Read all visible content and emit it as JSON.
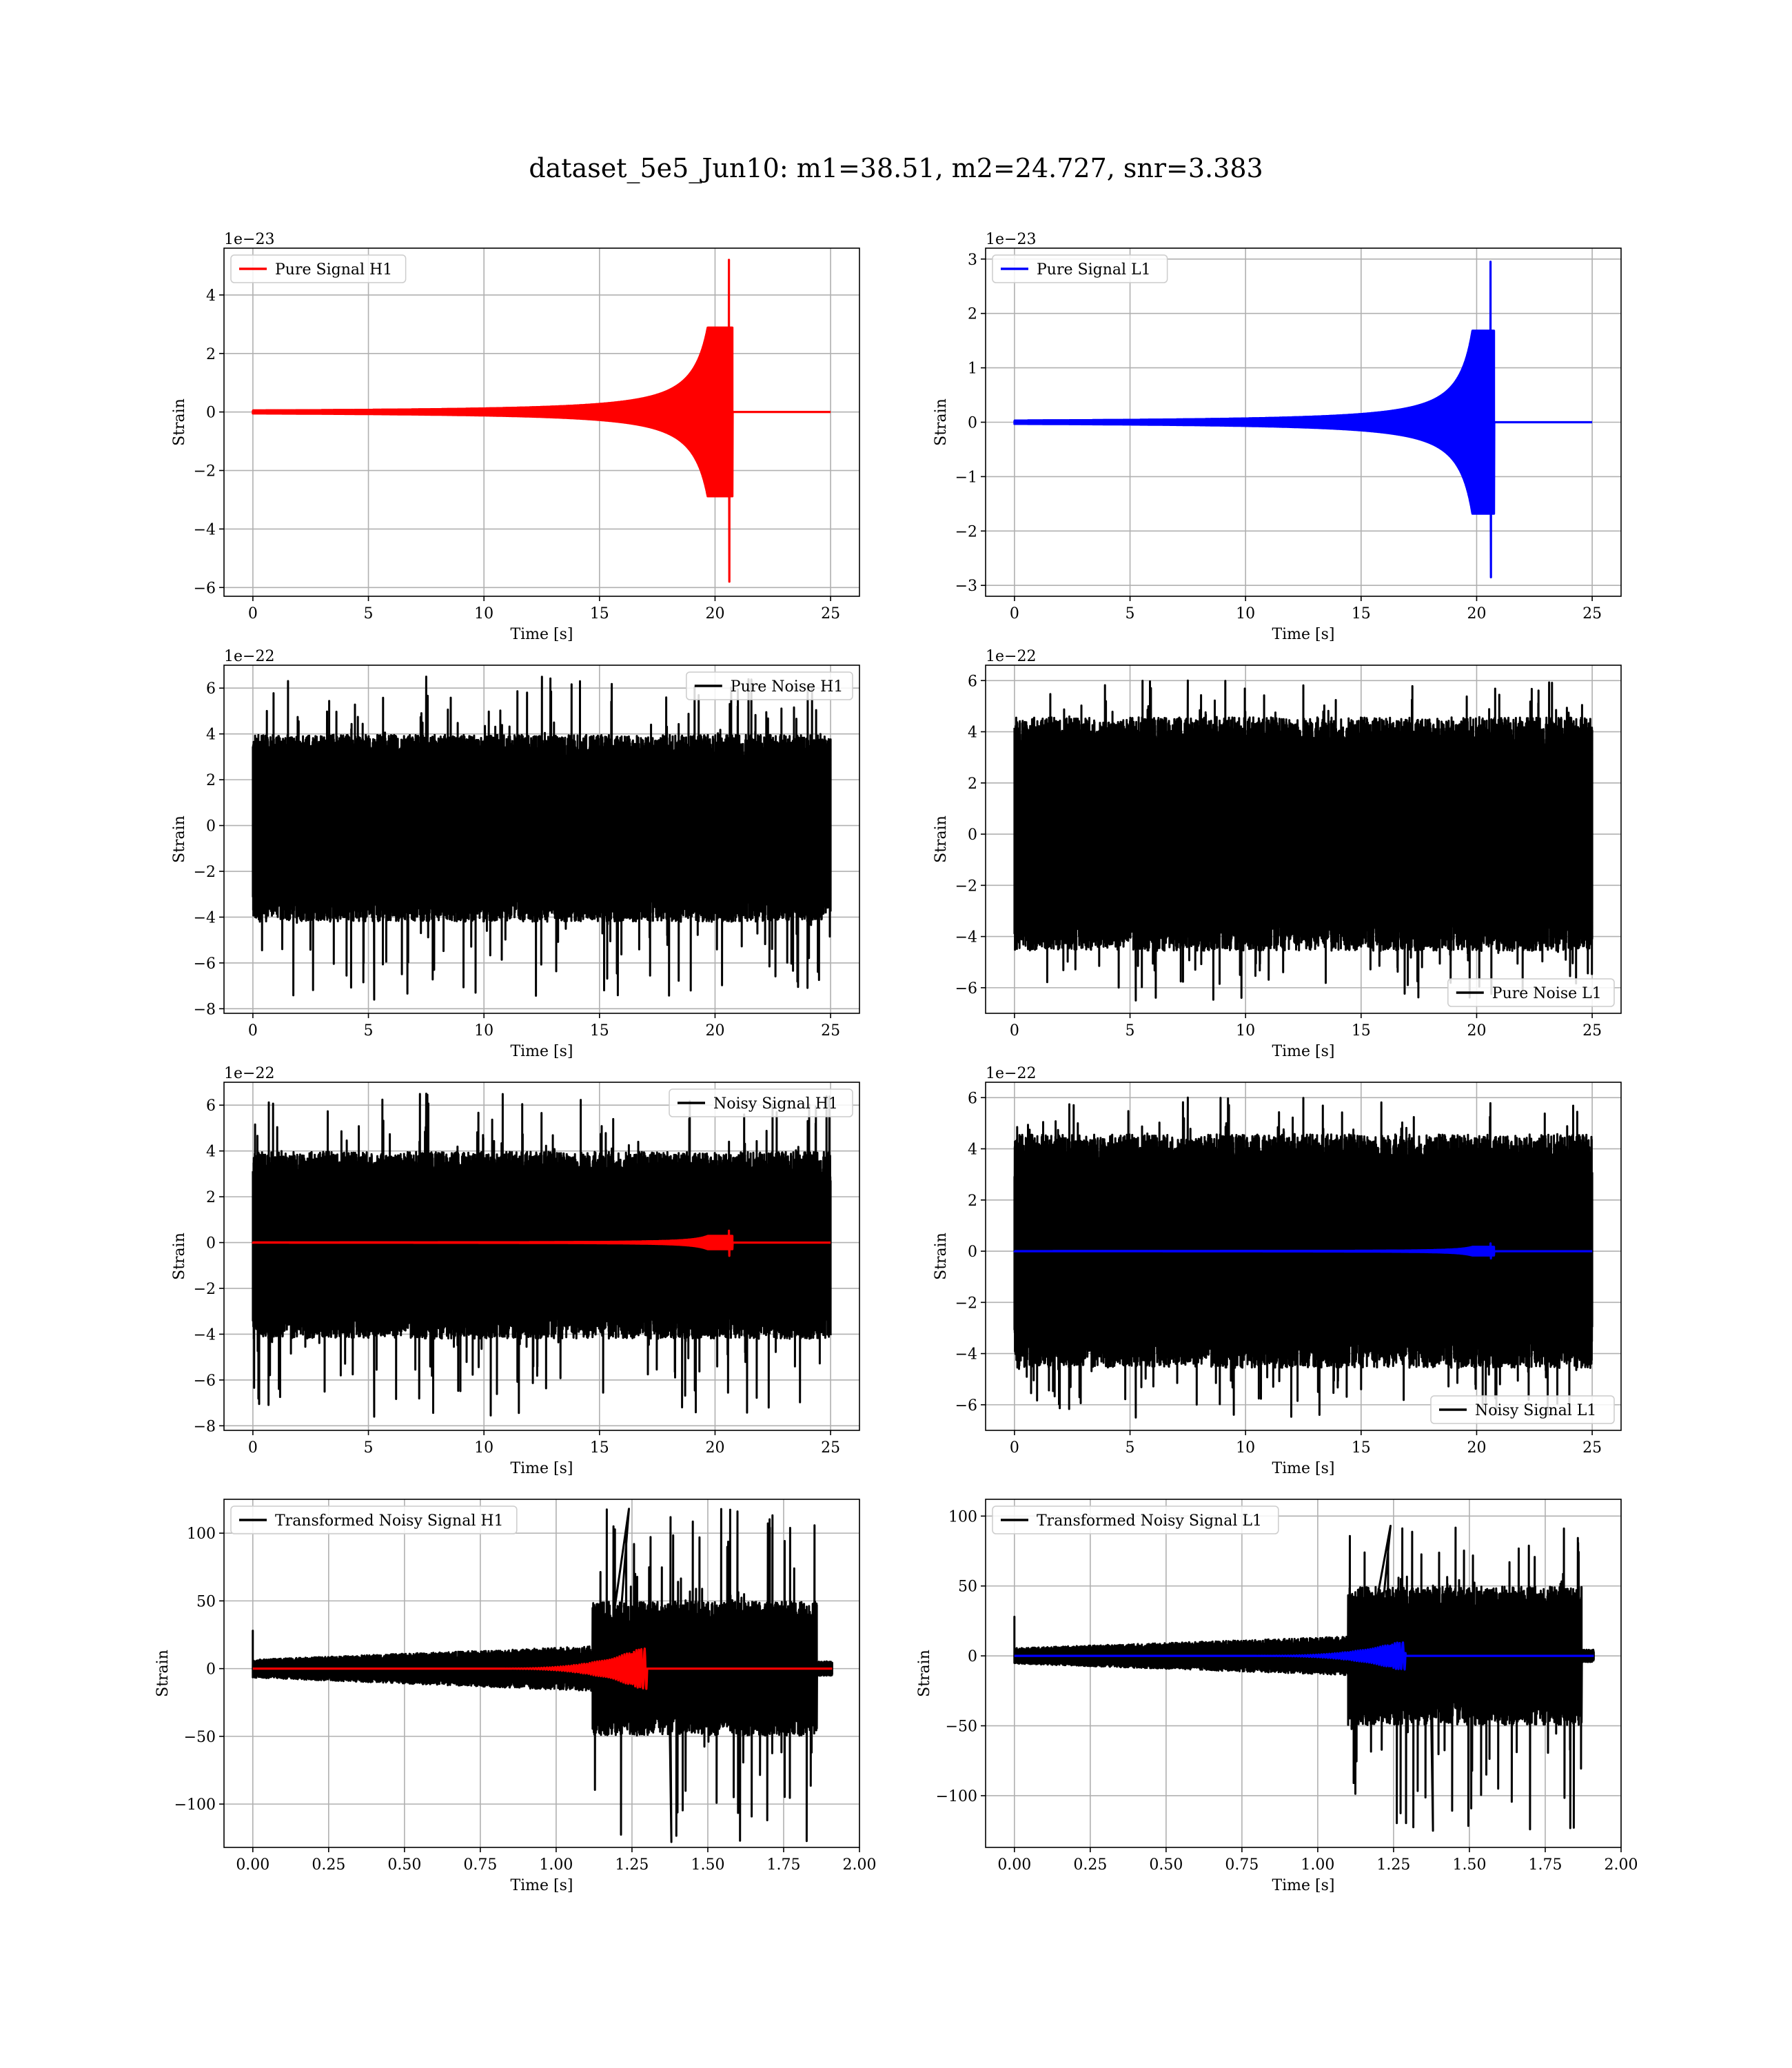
{
  "figure": {
    "title": "dataset_5e5_Jun10: m1=38.51, m2=24.727, snr=3.383"
  },
  "chart_data": [
    {
      "type": "line",
      "panel": "top-left",
      "title": "",
      "xlabel": "Time [s]",
      "ylabel": "Strain",
      "offset_text": "1e−23",
      "xlim": [
        -1.25,
        26.25
      ],
      "ylim": [
        -6.3,
        5.6
      ],
      "xticks": [
        0,
        5,
        10,
        15,
        20,
        25
      ],
      "yticks": [
        -6,
        -4,
        -2,
        0,
        2,
        4
      ],
      "ytick_labels": [
        "−6",
        "−4",
        "−2",
        "0",
        "2",
        "4"
      ],
      "grid": true,
      "legend_loc": "top-left",
      "series": [
        {
          "name": "Pure Signal H1",
          "color": "#ff0000",
          "kind": "chirp",
          "x_range": [
            0,
            25
          ],
          "merger_time": 20.6,
          "peak_high": 5.2,
          "peak_low": -5.8,
          "early_amp": 0.05,
          "amp_at_19": 1.4,
          "amp_at_20_4": 2.4
        }
      ]
    },
    {
      "type": "line",
      "panel": "top-right",
      "title": "",
      "xlabel": "Time [s]",
      "ylabel": "Strain",
      "offset_text": "1e−23",
      "xlim": [
        -1.25,
        26.25
      ],
      "ylim": [
        -3.2,
        3.2
      ],
      "xticks": [
        0,
        5,
        10,
        15,
        20,
        25
      ],
      "yticks": [
        -3,
        -2,
        -1,
        0,
        1,
        2,
        3
      ],
      "ytick_labels": [
        "−3",
        "−2",
        "−1",
        "0",
        "1",
        "2",
        "3"
      ],
      "grid": true,
      "legend_loc": "top-left",
      "series": [
        {
          "name": "Pure Signal L1",
          "color": "#0000ff",
          "kind": "chirp",
          "x_range": [
            0,
            25
          ],
          "merger_time": 20.6,
          "peak_high": 2.95,
          "peak_low": -2.85,
          "early_amp": 0.03,
          "amp_at_19": 0.7,
          "amp_at_20_4": 1.4
        }
      ]
    },
    {
      "type": "line",
      "panel": "second-row-left",
      "title": "",
      "xlabel": "Time [s]",
      "ylabel": "Strain",
      "offset_text": "1e−22",
      "xlim": [
        -1.25,
        26.25
      ],
      "ylim": [
        -8.2,
        7.0
      ],
      "xticks": [
        0,
        5,
        10,
        15,
        20,
        25
      ],
      "yticks": [
        -8,
        -6,
        -4,
        -2,
        0,
        2,
        4,
        6
      ],
      "ytick_labels": [
        "−8",
        "−6",
        "−4",
        "−2",
        "0",
        "2",
        "4",
        "6"
      ],
      "grid": true,
      "legend_loc": "top-right",
      "series": [
        {
          "name": "Pure Noise H1",
          "color": "#000000",
          "kind": "noise",
          "x_range": [
            0,
            25
          ],
          "band_high": 3.3,
          "band_low": -3.5,
          "peak_high": 6.5,
          "peak_low": -7.6
        }
      ]
    },
    {
      "type": "line",
      "panel": "second-row-right",
      "title": "",
      "xlabel": "Time [s]",
      "ylabel": "Strain",
      "offset_text": "1e−22",
      "xlim": [
        -1.25,
        26.25
      ],
      "ylim": [
        -7.0,
        6.6
      ],
      "xticks": [
        0,
        5,
        10,
        15,
        20,
        25
      ],
      "yticks": [
        -6,
        -4,
        -2,
        0,
        2,
        4,
        6
      ],
      "ytick_labels": [
        "−6",
        "−4",
        "−2",
        "0",
        "2",
        "4",
        "6"
      ],
      "grid": true,
      "legend_loc": "bottom-right",
      "series": [
        {
          "name": "Pure Noise L1",
          "color": "#000000",
          "kind": "noise",
          "x_range": [
            0,
            25
          ],
          "band_high": 3.8,
          "band_low": -3.8,
          "peak_high": 6.0,
          "peak_low": -6.5
        }
      ]
    },
    {
      "type": "line",
      "panel": "third-row-left",
      "title": "",
      "xlabel": "Time [s]",
      "ylabel": "Strain",
      "offset_text": "1e−22",
      "xlim": [
        -1.25,
        26.25
      ],
      "ylim": [
        -8.2,
        7.0
      ],
      "xticks": [
        0,
        5,
        10,
        15,
        20,
        25
      ],
      "yticks": [
        -8,
        -6,
        -4,
        -2,
        0,
        2,
        4,
        6
      ],
      "ytick_labels": [
        "−8",
        "−6",
        "−4",
        "−2",
        "0",
        "2",
        "4",
        "6"
      ],
      "grid": true,
      "legend_loc": "top-right",
      "series": [
        {
          "name": "Noisy Signal H1",
          "color": "#000000",
          "kind": "noise",
          "x_range": [
            0,
            25
          ],
          "band_high": 3.3,
          "band_low": -3.5,
          "peak_high": 6.5,
          "peak_low": -7.6
        },
        {
          "color": "#ff0000",
          "kind": "chirp",
          "x_range": [
            0,
            25
          ],
          "merger_time": 20.6,
          "peak_high": 0.52,
          "peak_low": -0.58,
          "early_amp": 0.005,
          "amp_at_19": 0.14,
          "amp_at_20_4": 0.24
        }
      ]
    },
    {
      "type": "line",
      "panel": "third-row-right",
      "title": "",
      "xlabel": "Time [s]",
      "ylabel": "Strain",
      "offset_text": "1e−22",
      "xlim": [
        -1.25,
        26.25
      ],
      "ylim": [
        -7.0,
        6.6
      ],
      "xticks": [
        0,
        5,
        10,
        15,
        20,
        25
      ],
      "yticks": [
        -6,
        -4,
        -2,
        0,
        2,
        4,
        6
      ],
      "ytick_labels": [
        "−6",
        "−4",
        "−2",
        "0",
        "2",
        "4",
        "6"
      ],
      "grid": true,
      "legend_loc": "bottom-right",
      "series": [
        {
          "name": "Noisy Signal L1",
          "color": "#000000",
          "kind": "noise",
          "x_range": [
            0,
            25
          ],
          "band_high": 3.8,
          "band_low": -3.8,
          "peak_high": 6.0,
          "peak_low": -6.5
        },
        {
          "color": "#0000ff",
          "kind": "chirp",
          "x_range": [
            0,
            25
          ],
          "merger_time": 20.6,
          "peak_high": 0.3,
          "peak_low": -0.28,
          "early_amp": 0.003,
          "amp_at_19": 0.07,
          "amp_at_20_4": 0.14
        }
      ]
    },
    {
      "type": "line",
      "panel": "bottom-left",
      "title": "",
      "xlabel": "Time [s]",
      "ylabel": "Strain",
      "offset_text": "",
      "xlim": [
        -0.095,
        2.0
      ],
      "ylim": [
        -132,
        125
      ],
      "xticks": [
        0.0,
        0.25,
        0.5,
        0.75,
        1.0,
        1.25,
        1.5,
        1.75,
        2.0
      ],
      "xtick_labels": [
        "0.00",
        "0.25",
        "0.50",
        "0.75",
        "1.00",
        "1.25",
        "1.50",
        "1.75",
        "2.00"
      ],
      "yticks": [
        -100,
        -50,
        0,
        50,
        100
      ],
      "ytick_labels": [
        "−100",
        "−50",
        "0",
        "50",
        "100"
      ],
      "grid": true,
      "legend_loc": "top-left",
      "series": [
        {
          "name": "Transformed Noisy Signal H1",
          "color": "#000000",
          "kind": "transformed",
          "x_range": [
            0,
            1.91
          ],
          "burst_start": 1.12,
          "burst_end": 1.86,
          "quiet_amp": 6,
          "burst_amp": 45,
          "peak_high": 118,
          "peak_low": -128
        },
        {
          "color": "#ff0000",
          "kind": "tchirp",
          "x_range": [
            0,
            1.91
          ],
          "merger_time": 1.28,
          "peak_amp": 15
        }
      ]
    },
    {
      "type": "line",
      "panel": "bottom-right",
      "title": "",
      "xlabel": "Time [s]",
      "ylabel": "Strain",
      "offset_text": "",
      "xlim": [
        -0.095,
        2.0
      ],
      "ylim": [
        -137,
        112
      ],
      "xticks": [
        0.0,
        0.25,
        0.5,
        0.75,
        1.0,
        1.25,
        1.5,
        1.75,
        2.0
      ],
      "xtick_labels": [
        "0.00",
        "0.25",
        "0.50",
        "0.75",
        "1.00",
        "1.25",
        "1.50",
        "1.75",
        "2.00"
      ],
      "yticks": [
        -100,
        -50,
        0,
        50,
        100
      ],
      "ytick_labels": [
        "−100",
        "−50",
        "0",
        "50",
        "100"
      ],
      "grid": true,
      "legend_loc": "top-left",
      "series": [
        {
          "name": "Transformed Noisy Signal L1",
          "color": "#000000",
          "kind": "transformed",
          "x_range": [
            0,
            1.91
          ],
          "burst_start": 1.1,
          "burst_end": 1.87,
          "quiet_amp": 5,
          "burst_amp": 45,
          "peak_high": 93,
          "peak_low": -125
        },
        {
          "color": "#0000ff",
          "kind": "tchirp",
          "x_range": [
            0,
            1.91
          ],
          "merger_time": 1.27,
          "peak_amp": 10
        }
      ]
    }
  ]
}
